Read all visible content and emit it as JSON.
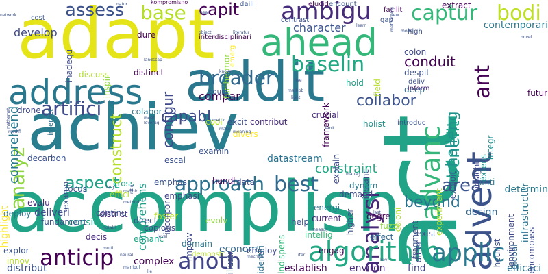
{
  "words": [
    {
      "text": "accomplish",
      "color": "#20a386",
      "vertical": false
    },
    {
      "text": "achiev",
      "color": "#287d8e",
      "vertical": false
    },
    {
      "text": "act",
      "color": "#20a386",
      "vertical": true
    },
    {
      "text": "adapt",
      "color": "#e5e419",
      "vertical": false
    },
    {
      "text": "addit",
      "color": "#2a788e",
      "vertical": false
    },
    {
      "text": "address",
      "color": "#2a788e",
      "vertical": false
    },
    {
      "text": "ahead",
      "color": "#35b779",
      "vertical": false
    },
    {
      "text": "advent",
      "color": "#3b528b",
      "vertical": true
    },
    {
      "text": "advanc",
      "color": "#35b779",
      "vertical": true
    },
    {
      "text": "analysi",
      "color": "#482878",
      "vertical": true
    },
    {
      "text": "analyz",
      "color": "#90d743",
      "vertical": true
    },
    {
      "text": "ambigu",
      "color": "#472c7a",
      "vertical": false
    },
    {
      "text": "algorithm",
      "color": "#22a884",
      "vertical": false
    },
    {
      "text": "applic",
      "color": "#2a788e",
      "vertical": false
    },
    {
      "text": "artifici",
      "color": "#3e4a89",
      "vertical": false
    },
    {
      "text": "approach",
      "color": "#2c728e",
      "vertical": false
    },
    {
      "text": "anticip",
      "color": "#440154",
      "vertical": false
    },
    {
      "text": "anoth",
      "color": "#414487",
      "vertical": false
    },
    {
      "text": "best",
      "color": "#31688e",
      "vertical": false
    },
    {
      "text": "baselin",
      "color": "#22a884",
      "vertical": false
    },
    {
      "text": "broader",
      "color": "#31688e",
      "vertical": false
    },
    {
      "text": "base",
      "color": "#b5de2b",
      "vertical": false
    },
    {
      "text": "captur",
      "color": "#35b779",
      "vertical": false
    },
    {
      "text": "capit",
      "color": "#440154",
      "vertical": false
    },
    {
      "text": "assess",
      "color": "#3b528b",
      "vertical": false
    },
    {
      "text": "bodi",
      "color": "#bddf26",
      "vertical": false
    },
    {
      "text": "area",
      "color": "#3b528b",
      "vertical": false
    },
    {
      "text": "aspect",
      "color": "#20a386",
      "vertical": false
    },
    {
      "text": "beyond",
      "color": "#2c728e",
      "vertical": false
    },
    {
      "text": "benefit",
      "color": "#1f9e89",
      "vertical": true
    },
    {
      "text": "challeng",
      "color": "#21918c",
      "vertical": true
    },
    {
      "text": "ant",
      "color": "#440154",
      "vertical": true
    },
    {
      "text": "capabl",
      "color": "#3e4a89",
      "vertical": false
    },
    {
      "text": "conduit",
      "color": "#440154",
      "vertical": false
    },
    {
      "text": "collabor",
      "color": "#3b528b",
      "vertical": false
    },
    {
      "text": "constraint",
      "color": "#22a884",
      "vertical": false
    },
    {
      "text": "construct",
      "color": "#b5de2b",
      "vertical": true
    },
    {
      "text": "configur",
      "color": "#3e4a89",
      "vertical": true
    },
    {
      "text": "comprehend",
      "color": "#2a788e",
      "vertical": true
    },
    {
      "text": "character",
      "color": "#3b528b",
      "vertical": false
    },
    {
      "text": "compar",
      "color": "#440154",
      "vertical": false
    },
    {
      "text": "comprehens",
      "color": "#1f9e89",
      "vertical": true
    },
    {
      "text": "datastream",
      "color": "#2c728e",
      "vertical": false
    },
    {
      "text": "develop",
      "color": "#3e4a89",
      "vertical": false
    },
    {
      "text": "contemporari",
      "color": "#2a788e",
      "vertical": false
    },
    {
      "text": "infrastructur",
      "color": "#2c728e",
      "vertical": true
    },
    {
      "text": "design",
      "color": "#31688e",
      "vertical": false
    },
    {
      "text": "determin",
      "color": "#2a788e",
      "vertical": false
    },
    {
      "text": "establish",
      "color": "#440154",
      "vertical": false
    },
    {
      "text": "environ",
      "color": "#482878",
      "vertical": false
    },
    {
      "text": "find",
      "color": "#414487",
      "vertical": false
    },
    {
      "text": "efficaci",
      "color": "#2c728e",
      "vertical": false
    },
    {
      "text": "distribut",
      "color": "#3b528b",
      "vertical": false
    },
    {
      "text": "complex",
      "color": "#440154",
      "vertical": false
    },
    {
      "text": "econom",
      "color": "#31688e",
      "vertical": false
    },
    {
      "text": "deliveri",
      "color": "#3e4a89",
      "vertical": false
    },
    {
      "text": "district",
      "color": "#482878",
      "vertical": false
    },
    {
      "text": "consid",
      "color": "#22a884",
      "vertical": false
    },
    {
      "text": "colabor",
      "color": "#2a788e",
      "vertical": false
    },
    {
      "text": "cross",
      "color": "#20a386",
      "vertical": false
    },
    {
      "text": "effici",
      "color": "#b5de2b",
      "vertical": false
    },
    {
      "text": "evalu",
      "color": "#482878",
      "vertical": false
    },
    {
      "text": "decarbon",
      "color": "#3b528b",
      "vertical": false
    },
    {
      "text": "drone",
      "color": "#3e4a89",
      "vertical": false
    },
    {
      "text": "discuss",
      "color": "#b5de2b",
      "vertical": false
    },
    {
      "text": "distinct",
      "color": "#440154",
      "vertical": false
    },
    {
      "text": "dure",
      "color": "#440154",
      "vertical": false
    },
    {
      "text": "deep",
      "color": "#31688e",
      "vertical": false
    },
    {
      "text": "hold",
      "color": "#1f9e89",
      "vertical": false
    },
    {
      "text": "holist",
      "color": "#21918c",
      "vertical": false
    },
    {
      "text": "handl",
      "color": "#440154",
      "vertical": false
    },
    {
      "text": "crucial",
      "color": "#482878",
      "vertical": false
    },
    {
      "text": "contribut",
      "color": "#472c7a",
      "vertical": false
    },
    {
      "text": "excit",
      "color": "#3e4a89",
      "vertical": false
    },
    {
      "text": "cool",
      "color": "#b5de2b",
      "vertical": false
    },
    {
      "text": "divers",
      "color": "#fde725",
      "vertical": false
    },
    {
      "text": "emphas",
      "color": "#3b528b",
      "vertical": false
    },
    {
      "text": "emphasi",
      "color": "#414487",
      "vertical": false
    },
    {
      "text": "examin",
      "color": "#3b528b",
      "vertical": false
    },
    {
      "text": "escal",
      "color": "#3b528b",
      "vertical": false
    },
    {
      "text": "data",
      "color": "#3e4a89",
      "vertical": false
    },
    {
      "text": "dynam",
      "color": "#2a788e",
      "vertical": false
    },
    {
      "text": "demand",
      "color": "#3e4a89",
      "vertical": false
    },
    {
      "text": "current",
      "color": "#482878",
      "vertical": false
    },
    {
      "text": "energi",
      "color": "#2c728e",
      "vertical": false
    },
    {
      "text": "degre",
      "color": "#440154",
      "vertical": false
    },
    {
      "text": "help",
      "color": "#3b528b",
      "vertical": false
    },
    {
      "text": "fuzzi",
      "color": "#90d743",
      "vertical": false
    },
    {
      "text": "effect",
      "color": "#31688e",
      "vertical": false
    },
    {
      "text": "exist",
      "color": "#3b528b",
      "vertical": false
    },
    {
      "text": "engag",
      "color": "#440154",
      "vertical": false
    },
    {
      "text": "intellig",
      "color": "#35b779",
      "vertical": false
    },
    {
      "text": "employ",
      "color": "#3e4a89",
      "vertical": false
    },
    {
      "text": "domain",
      "color": "#2a788e",
      "vertical": false
    },
    {
      "text": "foster",
      "color": "#b5de2b",
      "vertical": false
    },
    {
      "text": "evolv",
      "color": "#90d743",
      "vertical": false
    },
    {
      "text": "copious",
      "color": "#3e4a89",
      "vertical": false
    },
    {
      "text": "decis",
      "color": "#482878",
      "vertical": false
    },
    {
      "text": "enhanc",
      "color": "#20a386",
      "vertical": false
    },
    {
      "text": "continu",
      "color": "#3b528b",
      "vertical": false
    },
    {
      "text": "direct",
      "color": "#3b528b",
      "vertical": false
    },
    {
      "text": "fundament",
      "color": "#3b528b",
      "vertical": false
    },
    {
      "text": "deploy",
      "color": "#2c728e",
      "vertical": false
    },
    {
      "text": "explor",
      "color": "#3b528b",
      "vertical": false
    },
    {
      "text": "innov",
      "color": "#b5de2b",
      "vertical": false
    },
    {
      "text": "demonstr",
      "color": "#b5de2b",
      "vertical": false
    },
    {
      "text": "focus",
      "color": "#3b528b",
      "vertical": false
    },
    {
      "text": "highlight",
      "color": "#fde725",
      "vertical": true
    },
    {
      "text": "examp",
      "color": "#3b528b",
      "vertical": true
    },
    {
      "text": "interact",
      "color": "#2c728e",
      "vertical": true
    },
    {
      "text": "inspir",
      "color": "#90d743",
      "vertical": true
    },
    {
      "text": "inadequ",
      "color": "#3e4a89",
      "vertical": true
    },
    {
      "text": "furthermor",
      "color": "#90d743",
      "vertical": true
    },
    {
      "text": "emerg",
      "color": "#fde725",
      "vertical": true
    },
    {
      "text": "incorpor",
      "color": "#3e4a89",
      "vertical": true
    },
    {
      "text": "improv",
      "color": "#3e4a89",
      "vertical": true
    },
    {
      "text": "illustr",
      "color": "#3b528b",
      "vertical": true
    },
    {
      "text": "identifi",
      "color": "#2c728e",
      "vertical": true
    },
    {
      "text": "indispens",
      "color": "#35b779",
      "vertical": true
    },
    {
      "text": "framework",
      "color": "#440154",
      "vertical": true
    },
    {
      "text": "explain",
      "color": "#3e4a89",
      "vertical": true
    },
    {
      "text": "field",
      "color": "#b5de2b",
      "vertical": true
    },
    {
      "text": "higher",
      "color": "#3b528b",
      "vertical": true
    },
    {
      "text": "instanc",
      "color": "#3e4a89",
      "vertical": true
    },
    {
      "text": "fragment",
      "color": "#3b528b",
      "vertical": true
    },
    {
      "text": "coloni",
      "color": "#b5de2b",
      "vertical": true
    },
    {
      "text": "differ",
      "color": "#3e4a89",
      "vertical": true
    },
    {
      "text": "experiment",
      "color": "#b5de2b",
      "vertical": true
    },
    {
      "text": "exploit",
      "color": "#3b528b",
      "vertical": true
    },
    {
      "text": "extens",
      "color": "#21918c",
      "vertical": true
    },
    {
      "text": "integr",
      "color": "#21918c",
      "vertical": true
    },
    {
      "text": "initi",
      "color": "#2a788e",
      "vertical": false
    },
    {
      "text": "insight",
      "color": "#3e4a89",
      "vertical": true
    },
    {
      "text": "heurist",
      "color": "#3b528b",
      "vertical": true
    },
    {
      "text": "global",
      "color": "#31688e",
      "vertical": true
    },
    {
      "text": "environment",
      "color": "#3e4a89",
      "vertical": true
    },
    {
      "text": "encompass",
      "color": "#3e4a89",
      "vertical": true
    },
    {
      "text": "futur",
      "color": "#440154",
      "vertical": false
    },
    {
      "text": "colon",
      "color": "#3e4a89",
      "vertical": false
    },
    {
      "text": "despit",
      "color": "#3b528b",
      "vertical": false
    },
    {
      "text": "inform",
      "color": "#482878",
      "vertical": false
    },
    {
      "text": "deliv",
      "color": "#3b528b",
      "vertical": false
    },
    {
      "text": "high",
      "color": "#3b528b",
      "vertical": false
    },
    {
      "text": "facilit",
      "color": "#440154",
      "vertical": false
    },
    {
      "text": "extract",
      "color": "#440154",
      "vertical": false
    },
    {
      "text": "encount",
      "color": "#3b528b",
      "vertical": false
    },
    {
      "text": "elucid",
      "color": "#440154",
      "vertical": false
    },
    {
      "text": "daili",
      "color": "#3b528b",
      "vertical": false
    },
    {
      "text": "contrast",
      "color": "#3b528b",
      "vertical": false
    },
    {
      "text": "gap",
      "color": "#3b528b",
      "vertical": false
    },
    {
      "text": "cost",
      "color": "#3b528b",
      "vertical": false
    },
    {
      "text": "interdisciplinari",
      "color": "#440154",
      "vertical": false
    },
    {
      "text": "coupl",
      "color": "#3b528b",
      "vertical": false
    },
    {
      "text": "kompromisno",
      "color": "#440154",
      "vertical": false
    },
    {
      "text": "introduc",
      "color": "#3b528b",
      "vertical": false
    },
    {
      "text": "network",
      "color": "#3b528b",
      "vertical": false
    },
    {
      "text": "mean",
      "color": "#3b528b",
      "vertical": false
    },
    {
      "text": "natur",
      "color": "#3b528b",
      "vertical": false
    },
    {
      "text": "landscap",
      "color": "#3b528b",
      "vertical": false
    },
    {
      "text": "metric",
      "color": "#3b528b",
      "vertical": false
    },
    {
      "text": "known",
      "color": "#3b528b",
      "vertical": false
    },
    {
      "text": "object",
      "color": "#3b528b",
      "vertical": false
    },
    {
      "text": "literatur",
      "color": "#3b528b",
      "vertical": false
    },
    {
      "text": "live",
      "color": "#3b528b",
      "vertical": false
    },
    {
      "text": "make",
      "color": "#3b528b",
      "vertical": false
    },
    {
      "text": "meet",
      "color": "#3b528b",
      "vertical": false
    },
    {
      "text": "leverag",
      "color": "#3b528b",
      "vertical": false
    },
    {
      "text": "limit",
      "color": "#3b528b",
      "vertical": false
    },
    {
      "text": "machin",
      "color": "#3b528b",
      "vertical": false
    },
    {
      "text": "method",
      "color": "#3b528b",
      "vertical": false
    },
    {
      "text": "manag",
      "color": "#3b528b",
      "vertical": false
    },
    {
      "text": "larg",
      "color": "#3b528b",
      "vertical": false
    },
    {
      "text": "notabl",
      "color": "#3b528b",
      "vertical": false
    },
    {
      "text": "measur",
      "color": "#3b528b",
      "vertical": false
    },
    {
      "text": "last",
      "color": "#3b528b",
      "vertical": false
    },
    {
      "text": "level",
      "color": "#3b528b",
      "vertical": false
    },
    {
      "text": "multi",
      "color": "#3b528b",
      "vertical": false
    },
    {
      "text": "neural",
      "color": "#3b528b",
      "vertical": false
    },
    {
      "text": "manipul",
      "color": "#3b528b",
      "vertical": false
    },
    {
      "text": "mechan",
      "color": "#3b528b",
      "vertical": false
    },
    {
      "text": "lie",
      "color": "#3b528b",
      "vertical": false
    },
    {
      "text": "iter",
      "color": "#3b528b",
      "vertical": false
    },
    {
      "text": "key",
      "color": "#3b528b",
      "vertical": false
    },
    {
      "text": "learn",
      "color": "#3b528b",
      "vertical": false
    },
    {
      "text": "model",
      "color": "#3b528b",
      "vertical": false
    },
    {
      "text": "novel",
      "color": "#3b528b",
      "vertical": false
    },
    {
      "text": "new",
      "color": "#3b528b",
      "vertical": false
    },
    {
      "text": "methodolog",
      "color": "#3b528b",
      "vertical": true
    },
    {
      "text": "mathemat",
      "color": "#3b528b",
      "vertical": true
    },
    {
      "text": "modifi",
      "color": "#3b528b",
      "vertical": false
    },
    {
      "text": "meaning",
      "color": "#3b528b",
      "vertical": false
    },
    {
      "text": "nitig",
      "color": "#3b528b",
      "vertical": true
    },
    {
      "text": "light",
      "color": "#3b528b",
      "vertical": false
    },
    {
      "text": "mathbb",
      "color": "#3b528b",
      "vertical": false
    }
  ]
}
